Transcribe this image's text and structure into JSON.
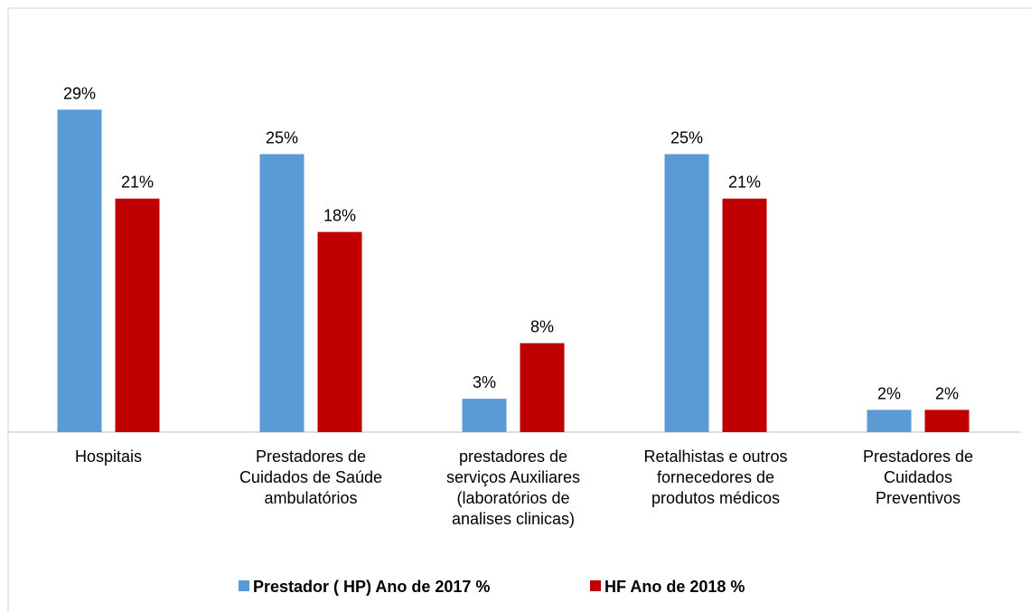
{
  "chart_data": {
    "type": "bar",
    "categories": [
      "Hospitais",
      "Prestadores de\nCuidados de Saúde\nambulatórios",
      "prestadores de\nserviços Auxiliares\n(laboratórios de\nanalises clinicas)",
      "Retalhistas e outros\nfornecedores de\nprodutos médicos",
      "Prestadores de\nCuidados\nPreventivos"
    ],
    "series": [
      {
        "name": "Prestador ( HP) Ano de 2017 %",
        "color": "#5b9bd5",
        "values": [
          29,
          25,
          3,
          25,
          2
        ],
        "value_labels": [
          "29%",
          "25%",
          "3%",
          "25%",
          "2%"
        ]
      },
      {
        "name": "HF Ano de 2018 %",
        "color": "#c00000",
        "values": [
          21,
          18,
          8,
          21,
          2
        ],
        "value_labels": [
          "21%",
          "18%",
          "8%",
          "21%",
          "2%"
        ]
      }
    ],
    "ylim": [
      0,
      35
    ],
    "legend": "bottom"
  }
}
